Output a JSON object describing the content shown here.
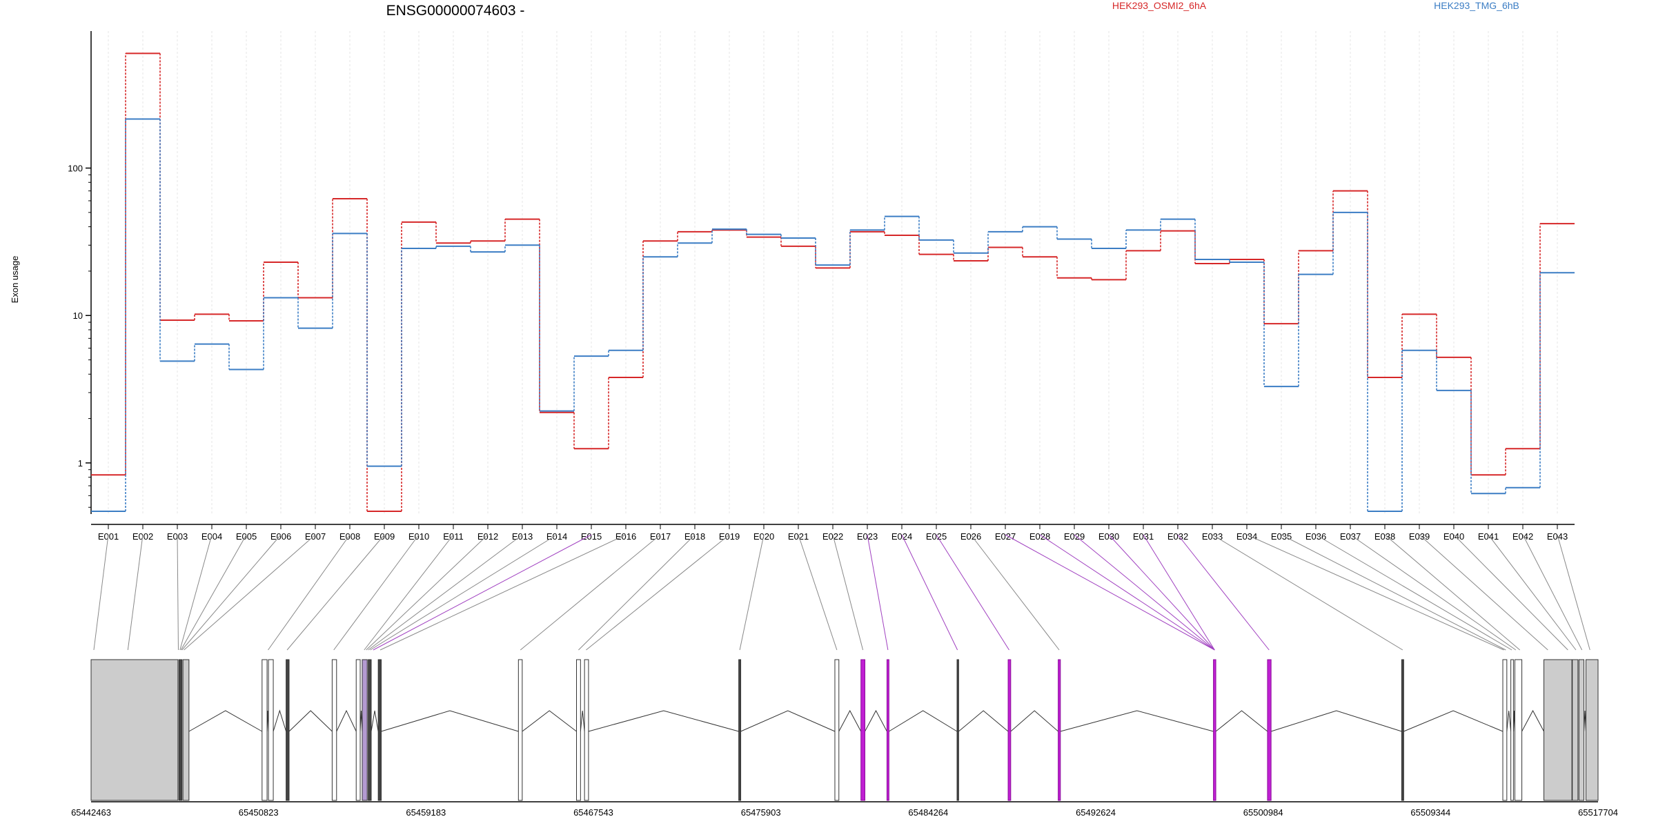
{
  "chart_data": {
    "type": "line",
    "title": "ENSG00000074603 -",
    "ylabel": "Exon usage",
    "yscale": "log",
    "ylim": [
      0.45,
      850
    ],
    "yticks": [
      1,
      10,
      100
    ],
    "ytick_labels": [
      "1",
      "10",
      "100"
    ],
    "categories": [
      "E001",
      "E002",
      "E003",
      "E004",
      "E005",
      "E006",
      "E007",
      "E008",
      "E009",
      "E010",
      "E011",
      "E012",
      "E013",
      "E014",
      "E015",
      "E016",
      "E017",
      "E018",
      "E019",
      "E020",
      "E021",
      "E022",
      "E023",
      "E024",
      "E025",
      "E026",
      "E027",
      "E028",
      "E029",
      "E030",
      "E031",
      "E032",
      "E033",
      "E034",
      "E035",
      "E036",
      "E037",
      "E038",
      "E039",
      "E040",
      "E041",
      "E042",
      "E043"
    ],
    "legend_position": "top",
    "series": [
      {
        "name": "HEK293_OSMI2_6hA",
        "color": "#d62728",
        "values": [
          0.83,
          600,
          9.3,
          10.2,
          9.2,
          23,
          13.2,
          62,
          0.47,
          43,
          31,
          32,
          45,
          2.2,
          1.25,
          3.8,
          32,
          37,
          38,
          34,
          29.5,
          21,
          37,
          35,
          26,
          23.5,
          29,
          25,
          18,
          17.5,
          27.5,
          37.5,
          22.5,
          24,
          8.8,
          27.5,
          70,
          3.8,
          10.2,
          5.2,
          0.83,
          1.25,
          42
        ]
      },
      {
        "name": "HEK293_TMG_6hB",
        "color": "#3b7dc4",
        "values": [
          0.47,
          215,
          4.9,
          6.4,
          4.3,
          13.2,
          8.2,
          36,
          0.95,
          28.5,
          29.5,
          27,
          30,
          2.25,
          5.3,
          5.8,
          25,
          31,
          38.5,
          35.5,
          33.5,
          22,
          38,
          47,
          32.5,
          26.5,
          37,
          40,
          33,
          28.5,
          38,
          45,
          24,
          23,
          3.3,
          19,
          50,
          0.47,
          5.8,
          3.1,
          0.62,
          0.68,
          19.5
        ]
      }
    ],
    "genomic_ticks": [
      "65442463",
      "65450823",
      "65459183",
      "65467543",
      "65475903",
      "65484264",
      "65492624",
      "65500984",
      "65509344",
      "65517704"
    ],
    "genomic_range": [
      65442463,
      65517704
    ],
    "gene_model": {
      "exons": [
        {
          "start": 65442463,
          "end": 65446800,
          "highlight": false,
          "fill": "gray"
        },
        {
          "start": 65446850,
          "end": 65447000,
          "highlight": false,
          "fill": "dark"
        },
        {
          "start": 65447050,
          "end": 65447350,
          "highlight": false,
          "fill": "gray"
        },
        {
          "start": 65451000,
          "end": 65451250,
          "highlight": false,
          "fill": "white"
        },
        {
          "start": 65451320,
          "end": 65451560,
          "highlight": false,
          "fill": "white"
        },
        {
          "start": 65452200,
          "end": 65452350,
          "highlight": false,
          "fill": "dark"
        },
        {
          "start": 65454500,
          "end": 65454720,
          "highlight": false,
          "fill": "white"
        },
        {
          "start": 65455700,
          "end": 65455900,
          "highlight": false,
          "fill": "white"
        },
        {
          "start": 65456000,
          "end": 65456250,
          "highlight": false,
          "fill": "purple"
        },
        {
          "start": 65456300,
          "end": 65456450,
          "highlight": false,
          "fill": "dark"
        },
        {
          "start": 65456800,
          "end": 65456950,
          "highlight": false,
          "fill": "dark"
        },
        {
          "start": 65463800,
          "end": 65463990,
          "highlight": false,
          "fill": "white"
        },
        {
          "start": 65466700,
          "end": 65466900,
          "highlight": false,
          "fill": "white"
        },
        {
          "start": 65467100,
          "end": 65467300,
          "highlight": false,
          "fill": "white"
        },
        {
          "start": 65474800,
          "end": 65474900,
          "highlight": false,
          "fill": "dark"
        },
        {
          "start": 65479600,
          "end": 65479800,
          "highlight": false,
          "fill": "white"
        },
        {
          "start": 65480900,
          "end": 65481100,
          "highlight": true,
          "fill": "magenta"
        },
        {
          "start": 65482200,
          "end": 65482300,
          "highlight": true,
          "fill": "magenta"
        },
        {
          "start": 65485700,
          "end": 65485780,
          "highlight": false,
          "fill": "dark"
        },
        {
          "start": 65488250,
          "end": 65488380,
          "highlight": true,
          "fill": "magenta"
        },
        {
          "start": 65490750,
          "end": 65490860,
          "highlight": true,
          "fill": "magenta"
        },
        {
          "start": 65498500,
          "end": 65498620,
          "highlight": true,
          "fill": "magenta"
        },
        {
          "start": 65501200,
          "end": 65501380,
          "highlight": true,
          "fill": "magenta"
        },
        {
          "start": 65507900,
          "end": 65508000,
          "highlight": false,
          "fill": "dark"
        },
        {
          "start": 65512950,
          "end": 65513150,
          "highlight": false,
          "fill": "white"
        },
        {
          "start": 65513350,
          "end": 65513480,
          "highlight": false,
          "fill": "white"
        },
        {
          "start": 65513550,
          "end": 65513900,
          "highlight": false,
          "fill": "white"
        },
        {
          "start": 65515000,
          "end": 65516400,
          "highlight": false,
          "fill": "gray"
        },
        {
          "start": 65516420,
          "end": 65516700,
          "highlight": false,
          "fill": "gray"
        },
        {
          "start": 65516750,
          "end": 65517000,
          "highlight": false,
          "fill": "gray"
        },
        {
          "start": 65517100,
          "end": 65517704,
          "highlight": false,
          "fill": "gray"
        }
      ],
      "exon_bin_coords": [
        65442600,
        65444300,
        65446820,
        65446900,
        65446950,
        65447000,
        65447100,
        65451300,
        65452250,
        65454580,
        65456100,
        65456200,
        65456300,
        65456400,
        65456550,
        65456900,
        65463900,
        65466800,
        65467180,
        65474850,
        65479700,
        65481000,
        65482250,
        65485720,
        65488300,
        65490800,
        65498560,
        65498560,
        65498560,
        65498560,
        65498560,
        65501280,
        65507950,
        65513000,
        65513100,
        65513400,
        65513600,
        65513800,
        65515200,
        65516200,
        65516600,
        65516900,
        65517300
      ],
      "exon_bin_highlight": [
        false,
        false,
        false,
        false,
        false,
        false,
        false,
        false,
        false,
        false,
        false,
        false,
        false,
        false,
        true,
        false,
        false,
        false,
        false,
        false,
        false,
        false,
        true,
        true,
        true,
        false,
        true,
        true,
        true,
        true,
        true,
        true,
        false,
        false,
        false,
        false,
        false,
        false,
        false,
        false,
        false,
        false,
        false
      ]
    }
  }
}
